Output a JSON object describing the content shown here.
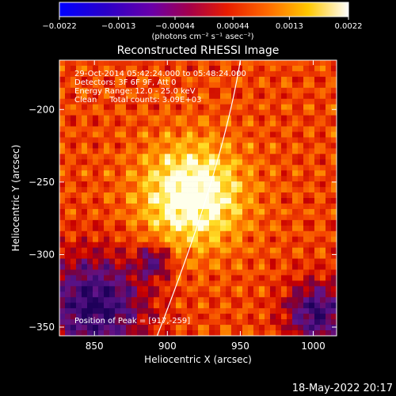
{
  "chart_data": {
    "type": "heatmap",
    "title": "Reconstructed RHESSI Image",
    "xlabel": "Heliocentric X (arcsec)",
    "ylabel": "Heliocentric Y (arcsec)",
    "xlim": [
      826,
      1016
    ],
    "ylim": [
      -356,
      -166
    ],
    "x_ticks": [
      850,
      900,
      950,
      1000
    ],
    "x_tick_labels": [
      "850",
      "900",
      "950",
      "1000"
    ],
    "y_ticks": [
      -200,
      -250,
      -300,
      -350
    ],
    "y_tick_labels": [
      "−200",
      "−250",
      "−300",
      "−350"
    ],
    "colorbar": {
      "min": -0.0022,
      "max": 0.0022,
      "ticks": [
        -0.0022,
        -0.0013,
        -0.00044,
        0.00044,
        0.0013,
        0.0022
      ],
      "tick_labels": [
        "−0.0022",
        "−0.0013",
        "−0.00044",
        "0.00044",
        "0.0013",
        "0.0022"
      ],
      "unit_label": "(photons cm⁻² s⁻¹ asec⁻²)"
    },
    "annotations": [
      "29-Oct-2014 05:42:24.000 to 05:48:24.000",
      "Detectors: 3F 6F 9F, Att 0",
      "Energy Range: 12.0 - 25.0 keV",
      "Clean     Total counts: 3.09E+03"
    ],
    "peak_label": "Position of Peak = [917,-259]",
    "peak": {
      "x": 917,
      "y": -259
    },
    "limb_arc": [
      [
        893,
        -356
      ],
      [
        930,
        -250
      ],
      [
        950,
        -166
      ]
    ],
    "colormap": "black-purple-red-orange-yellow-white",
    "grid": false
  },
  "footer": {
    "timestamp": "18-May-2022 20:17"
  }
}
